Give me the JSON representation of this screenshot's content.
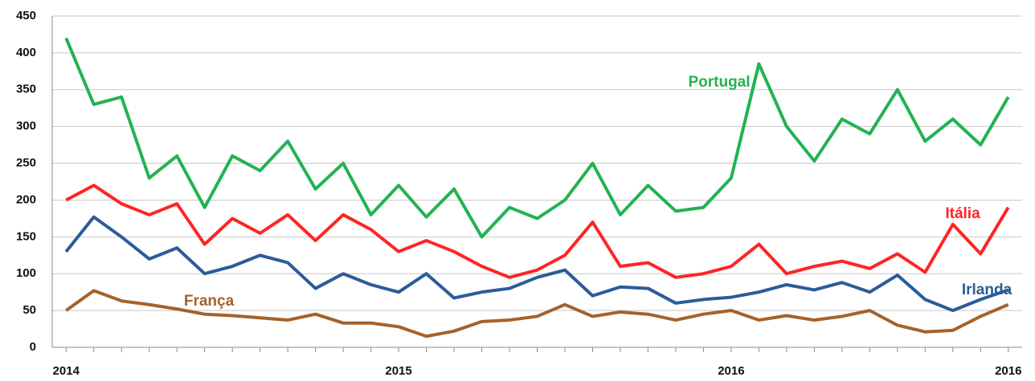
{
  "chart_data": {
    "type": "line",
    "categories": [
      "2014",
      null,
      null,
      null,
      null,
      null,
      null,
      null,
      null,
      null,
      null,
      null,
      "2015",
      null,
      null,
      null,
      null,
      null,
      null,
      null,
      null,
      null,
      null,
      null,
      "2016",
      null,
      null,
      null,
      null,
      null,
      null,
      null,
      null,
      null,
      "2016"
    ],
    "series": [
      {
        "name": "Portugal",
        "color": "#22b352",
        "values": [
          420,
          330,
          340,
          230,
          260,
          190,
          260,
          240,
          280,
          215,
          250,
          180,
          220,
          177,
          215,
          150,
          190,
          175,
          200,
          250,
          180,
          220,
          185,
          190,
          230,
          385,
          300,
          253,
          310,
          290,
          350,
          280,
          310,
          275,
          340
        ]
      },
      {
        "name": "Itália",
        "color": "#ff2424",
        "values": [
          200,
          220,
          195,
          180,
          195,
          140,
          175,
          155,
          180,
          145,
          180,
          160,
          130,
          145,
          130,
          110,
          95,
          105,
          125,
          170,
          110,
          115,
          95,
          100,
          110,
          140,
          100,
          110,
          117,
          107,
          127,
          102,
          167,
          127,
          190
        ]
      },
      {
        "name": "Irlanda",
        "color": "#2b5c9a",
        "values": [
          130,
          177,
          150,
          120,
          135,
          100,
          110,
          125,
          115,
          80,
          100,
          85,
          75,
          100,
          67,
          75,
          80,
          95,
          105,
          70,
          82,
          80,
          60,
          65,
          68,
          75,
          85,
          78,
          88,
          75,
          98,
          65,
          50,
          65,
          78
        ]
      },
      {
        "name": "França",
        "color": "#a5622a",
        "values": [
          50,
          77,
          63,
          58,
          52,
          45,
          43,
          40,
          37,
          45,
          33,
          33,
          28,
          15,
          22,
          35,
          37,
          42,
          58,
          42,
          48,
          45,
          37,
          45,
          50,
          37,
          43,
          37,
          42,
          50,
          30,
          21,
          23,
          42,
          58
        ]
      }
    ],
    "ylim": [
      0,
      450
    ],
    "yticks": [
      0,
      50,
      100,
      150,
      200,
      250,
      300,
      350,
      400,
      450
    ],
    "grid": true
  }
}
